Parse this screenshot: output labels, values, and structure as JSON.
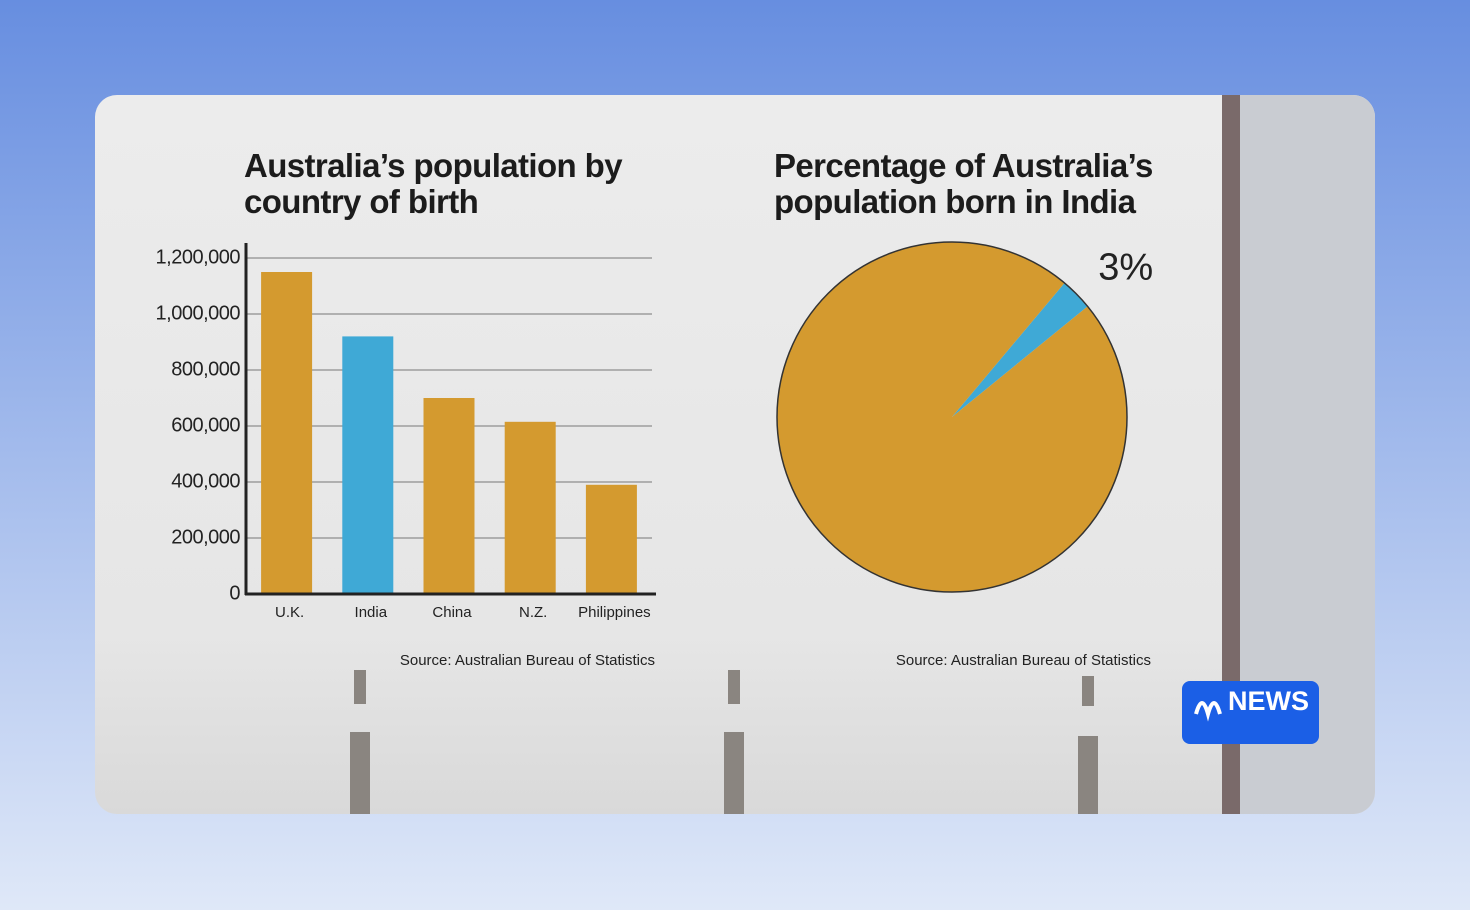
{
  "chart_data": [
    {
      "type": "bar",
      "title": "Australia’s population by country of birth",
      "categories": [
        "U.K.",
        "India",
        "China",
        "N.Z.",
        "Philippines"
      ],
      "values": [
        1150000,
        920000,
        700000,
        615000,
        390000
      ],
      "colors": [
        "#d49a2f",
        "#3fa9d6",
        "#d49a2f",
        "#d49a2f",
        "#d49a2f"
      ],
      "ylim": [
        0,
        1200000
      ],
      "yticks": [
        0,
        {
          "value": 200000,
          "label": "200,000"
        },
        {
          "value": 400000,
          "label": "400,000"
        },
        {
          "value": 600000,
          "label": "600,000"
        },
        {
          "value": 800000,
          "label": "800,000"
        },
        {
          "value": 1000000,
          "label": "1,000,000"
        },
        {
          "value": 1200000,
          "label": "1,200,000"
        }
      ],
      "grid": true,
      "source": "Source: Australian Bureau of Statistics"
    },
    {
      "type": "pie",
      "title": "Percentage of Australia’s population born in India",
      "values": [
        3,
        97
      ],
      "value_labels": [
        "3%",
        null
      ],
      "colors": [
        "#3fa9d6",
        "#d49a2f"
      ],
      "source": "Source: Australian Bureau of Statistics"
    }
  ],
  "logo": {
    "text": "NEWS"
  }
}
